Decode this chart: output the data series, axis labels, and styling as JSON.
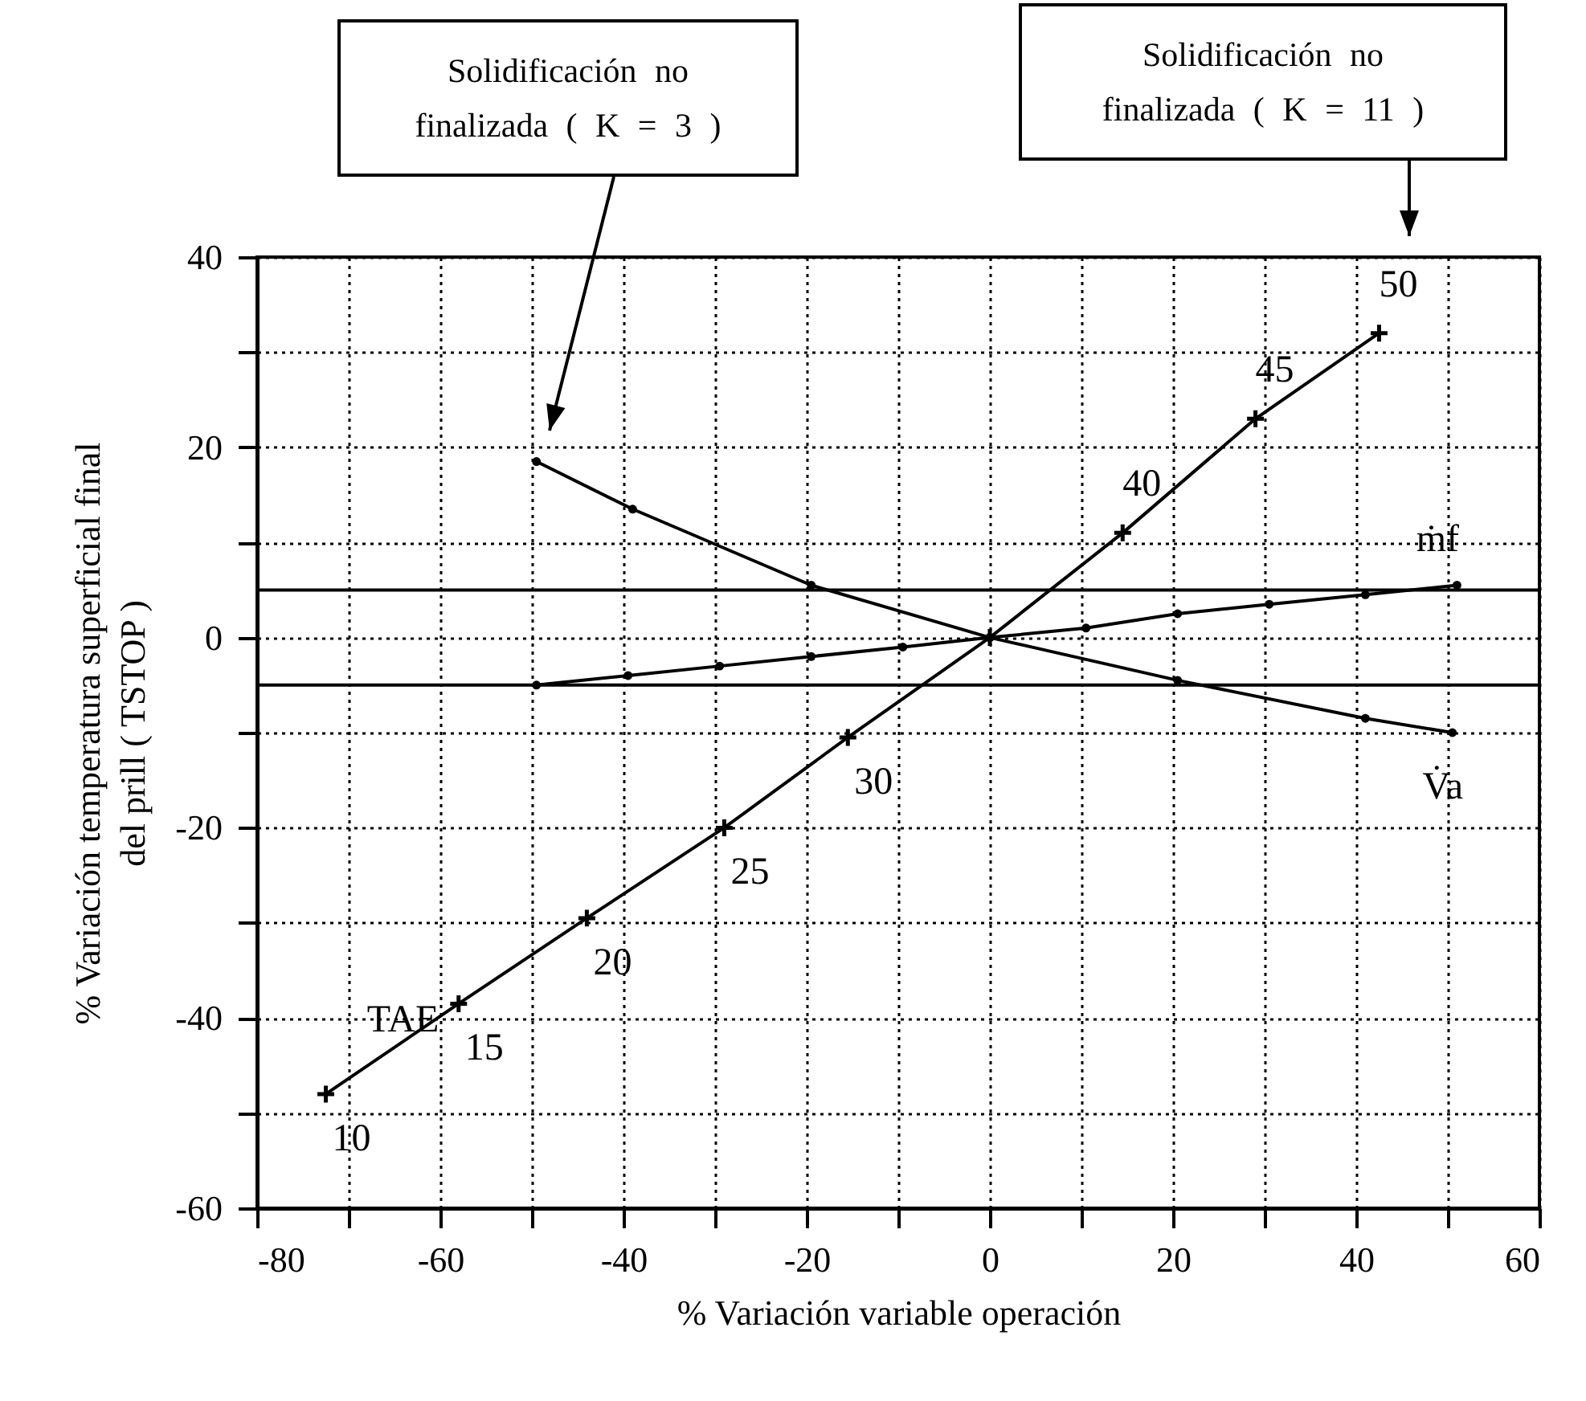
{
  "chart_data": {
    "type": "line",
    "xlabel": "% Variación variable operación",
    "ylabel": "% Variación temperatura superficial final\ndel prill ( TSTOP )",
    "xlim": [
      -80,
      60
    ],
    "xticks": [
      -80,
      {
        "value": -70,
        "label": null
      },
      -60,
      {
        "value": -50,
        "label": null
      },
      -40,
      {
        "value": -30,
        "label": null
      },
      -20,
      {
        "value": -10,
        "label": null
      },
      0,
      {
        "value": 10,
        "label": null
      },
      20,
      {
        "value": 30,
        "label": null
      },
      40,
      {
        "value": 50,
        "label": null
      },
      60
    ],
    "ylim": [
      -60,
      40
    ],
    "yticks": [
      -60,
      {
        "value": -50,
        "label": null
      },
      -40,
      {
        "value": -30,
        "label": null
      },
      -20,
      {
        "value": -10,
        "label": null
      },
      0,
      {
        "value": 10,
        "label": null
      },
      20,
      {
        "value": 30,
        "label": null
      },
      40
    ],
    "grid": true,
    "series": [
      {
        "name": "TAE",
        "color": "#000000",
        "marker": "cross",
        "x": [
          -72.5,
          -58,
          -44,
          -29,
          -15.5,
          0,
          14.5,
          29,
          42.5
        ],
        "values": [
          -48,
          -38.5,
          -29.5,
          -20,
          -10.5,
          0,
          11,
          23,
          32
        ]
      },
      {
        "name": "V̇a",
        "color": "#000000",
        "marker": "circle",
        "x": [
          -49.5,
          -39,
          -19.5,
          0,
          20.5,
          41,
          50.5
        ],
        "values": [
          18.5,
          13.5,
          5.5,
          0,
          -4.5,
          -8.5,
          -10
        ]
      },
      {
        "name": "ṁf",
        "color": "#000000",
        "marker": "circle",
        "x": [
          -49.5,
          -39.5,
          -29.5,
          -19.5,
          -9.5,
          0,
          10.5,
          20.5,
          30.5,
          41,
          51
        ],
        "values": [
          -5,
          -4,
          -3,
          -2,
          -1,
          0,
          1,
          2.5,
          3.5,
          4.5,
          5.5
        ]
      }
    ],
    "ref_lines": [
      {
        "axis": "y",
        "value": 5,
        "color": "#000000"
      },
      {
        "axis": "y",
        "value": -5,
        "color": "#000000"
      }
    ],
    "annotations": [
      "Solidificación no finalizada ( K = 3 )",
      "Solidificación no finalizada ( K = 11 )",
      {
        "text": "10",
        "x": -72.5,
        "y": -48
      },
      {
        "text": "15",
        "x": -58,
        "y": -38.5
      },
      {
        "text": "20",
        "x": -44,
        "y": -29.5
      },
      {
        "text": "25",
        "x": -29,
        "y": -20
      },
      {
        "text": "30",
        "x": -15.5,
        "y": -10.5
      },
      {
        "text": "40",
        "x": 14.5,
        "y": 11
      },
      {
        "text": "45",
        "x": 29,
        "y": 23
      },
      {
        "text": "50",
        "x": 42.5,
        "y": 32
      }
    ]
  }
}
